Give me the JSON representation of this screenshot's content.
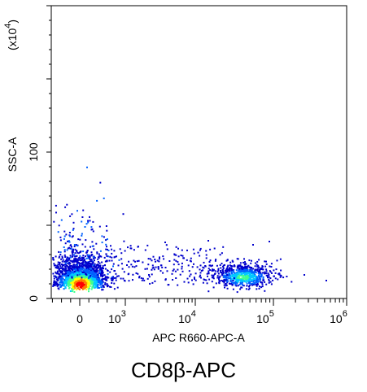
{
  "chart_data": {
    "type": "scatter",
    "subtype": "flow-cytometry-density-dot-plot",
    "xlabel": "APC R660-APC-A",
    "ylabel": "SSC-A",
    "y_multiplier": "(x10",
    "y_multiplier_exp": "4",
    "y_multiplier_close": ")",
    "x_scale": "biexponential",
    "x_ticks": [
      {
        "label": "0",
        "value": 0
      },
      {
        "label": "10",
        "exp": "3",
        "value": 1000
      },
      {
        "label": "10",
        "exp": "4",
        "value": 10000
      },
      {
        "label": "10",
        "exp": "5",
        "value": 100000
      },
      {
        "label": "10",
        "exp": "6",
        "value": 1000000
      }
    ],
    "y_ticks": [
      {
        "label": "0",
        "value": 0
      },
      {
        "label": "100",
        "value": 100
      }
    ],
    "ylim": [
      0,
      200
    ],
    "colormap": [
      "#0000cc",
      "#0060ff",
      "#00c8ff",
      "#40ff90",
      "#ffff00",
      "#ff8000",
      "#ff0000"
    ],
    "populations": [
      {
        "name_hint": "negative",
        "x_center": 0,
        "y_center": 10,
        "density": "high",
        "peak_color": "#ff0000"
      },
      {
        "name_hint": "positive",
        "x_center": 40000,
        "y_center": 15,
        "density": "medium",
        "peak_color": "#00c8ff"
      }
    ]
  },
  "caption": "CD8β-APC"
}
